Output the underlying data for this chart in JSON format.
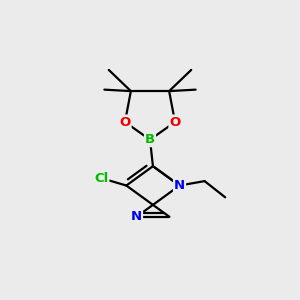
{
  "background_color": "#ebebeb",
  "bond_color": "#000000",
  "atom_colors": {
    "B": "#00bb00",
    "O": "#ee0000",
    "N": "#0000ee",
    "Cl": "#00bb00",
    "C": "#000000"
  },
  "figsize": [
    3.0,
    3.0
  ],
  "dpi": 100
}
